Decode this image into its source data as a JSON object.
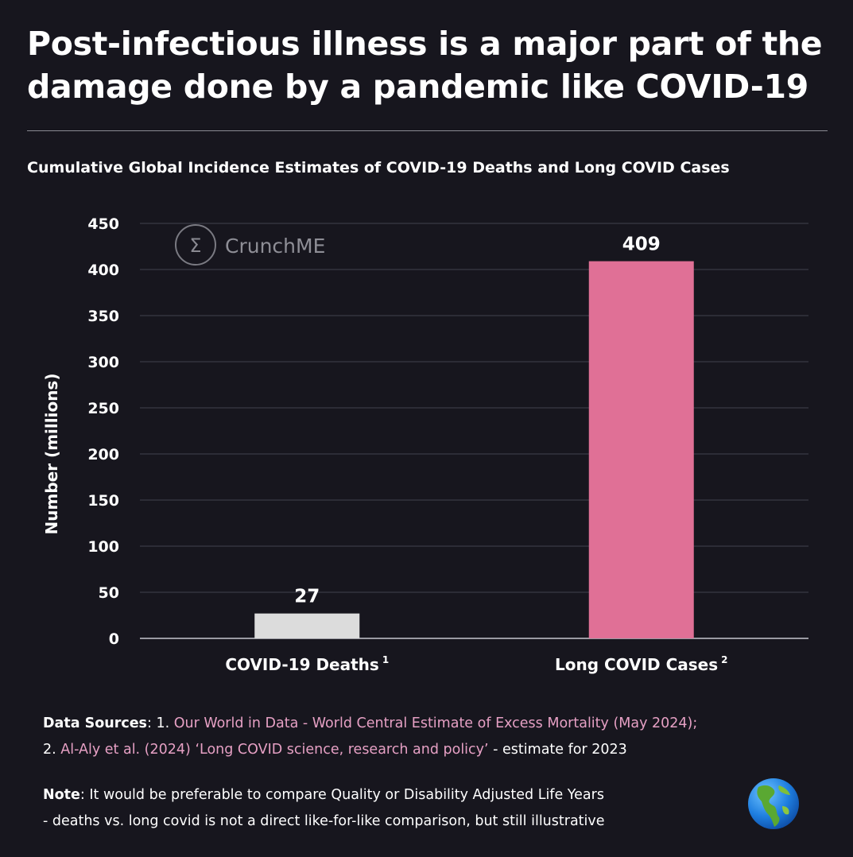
{
  "title": {
    "line1": "Post-infectious illness is a major part of the",
    "line2": "damage done by a pandemic like COVID-19"
  },
  "chart_data": {
    "type": "bar",
    "title": "Cumulative Global Incidence Estimates of COVID-19 Deaths and Long COVID Cases",
    "categories": [
      "COVID-19 Deaths",
      "Long COVID Cases"
    ],
    "category_footnotes": [
      "1",
      "2"
    ],
    "values": [
      27,
      409
    ],
    "data_labels": [
      "27",
      "409"
    ],
    "colors": [
      "#dcdcdc",
      "#e07096"
    ],
    "ylabel": "Number (millions)",
    "xlabel": "",
    "ylim": [
      0,
      450
    ],
    "yticks": [
      0,
      50,
      100,
      150,
      200,
      250,
      300,
      350,
      400,
      450
    ],
    "grid": true,
    "watermark": "CrunchME"
  },
  "sources": {
    "label": "Data Sources",
    "sep": ": 1. ",
    "source1": "Our World in Data - World Central Estimate of Excess Mortality (May 2024);",
    "prefix2": "2. ",
    "source2": "Al-Aly et al. (2024) ‘Long COVID science, research and policy’",
    "suffix2": " - estimate for 2023"
  },
  "note": {
    "label": "Note",
    "text1": ": It would be preferable to compare Quality or Disability Adjusted Life Years",
    "text2": "- deaths vs. long covid is not a direct like-for-like comparison, but still illustrative"
  },
  "icons": {
    "watermark_icon": "sigma-icon",
    "globe_icon": "globe-americas-icon"
  }
}
